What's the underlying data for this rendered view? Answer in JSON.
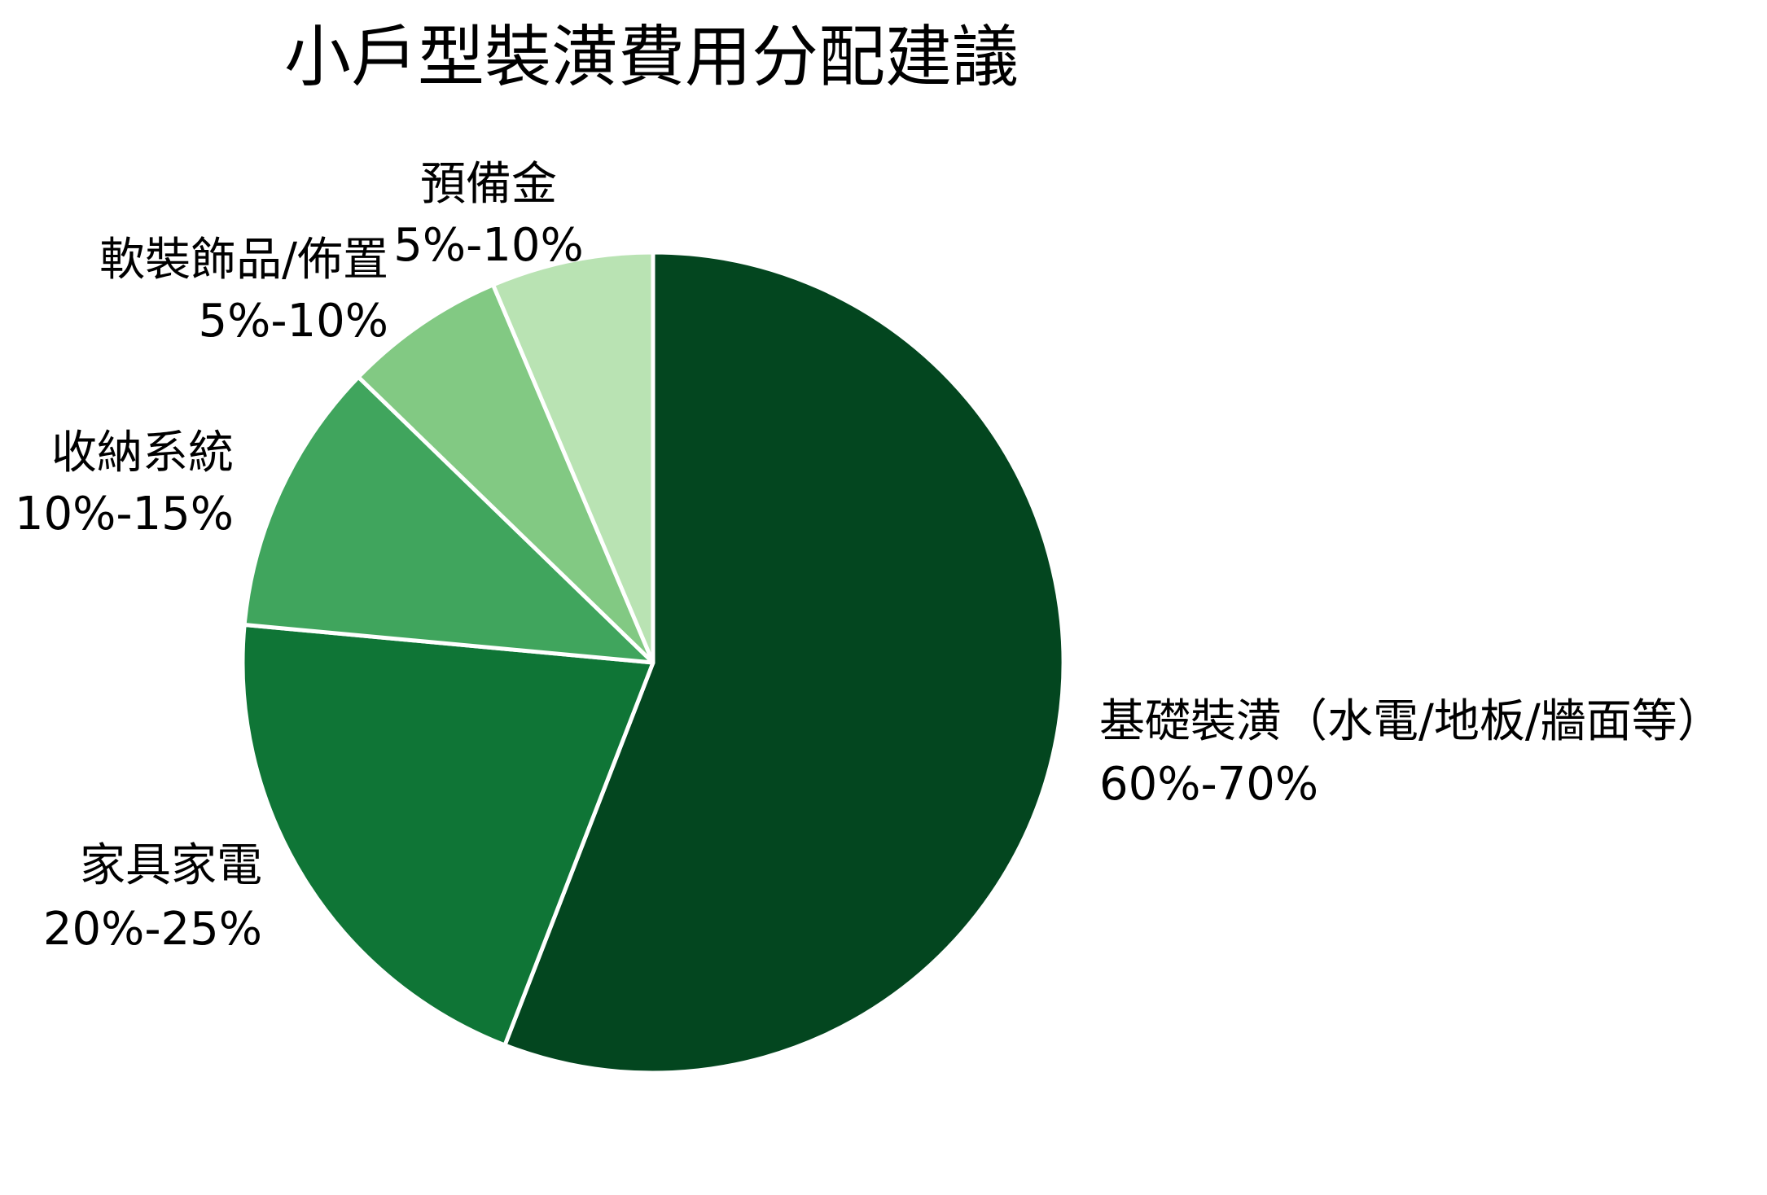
{
  "chart_data": {
    "type": "pie",
    "title": "小戶型裝潢費用分配建議",
    "start_angle": "12 o'clock",
    "direction": "clockwise",
    "slice_border_color": "#ffffff",
    "slices": [
      {
        "label": "基礎裝潢（水電/地板/牆面等）",
        "range": "60%-70%",
        "value": 57,
        "color": "#03461f"
      },
      {
        "label": "家具家電",
        "range": "20%-25%",
        "value": 21,
        "color": "#0f7536"
      },
      {
        "label": "收納系統",
        "range": "10%-15%",
        "value": 11,
        "color": "#40a55d"
      },
      {
        "label": "軟裝飾品/佈置",
        "range": "5%-10%",
        "value": 6.5,
        "color": "#82c983"
      },
      {
        "label": "預備金",
        "range": "5%-10%",
        "value": 6.5,
        "color": "#b9e3b3"
      }
    ]
  }
}
